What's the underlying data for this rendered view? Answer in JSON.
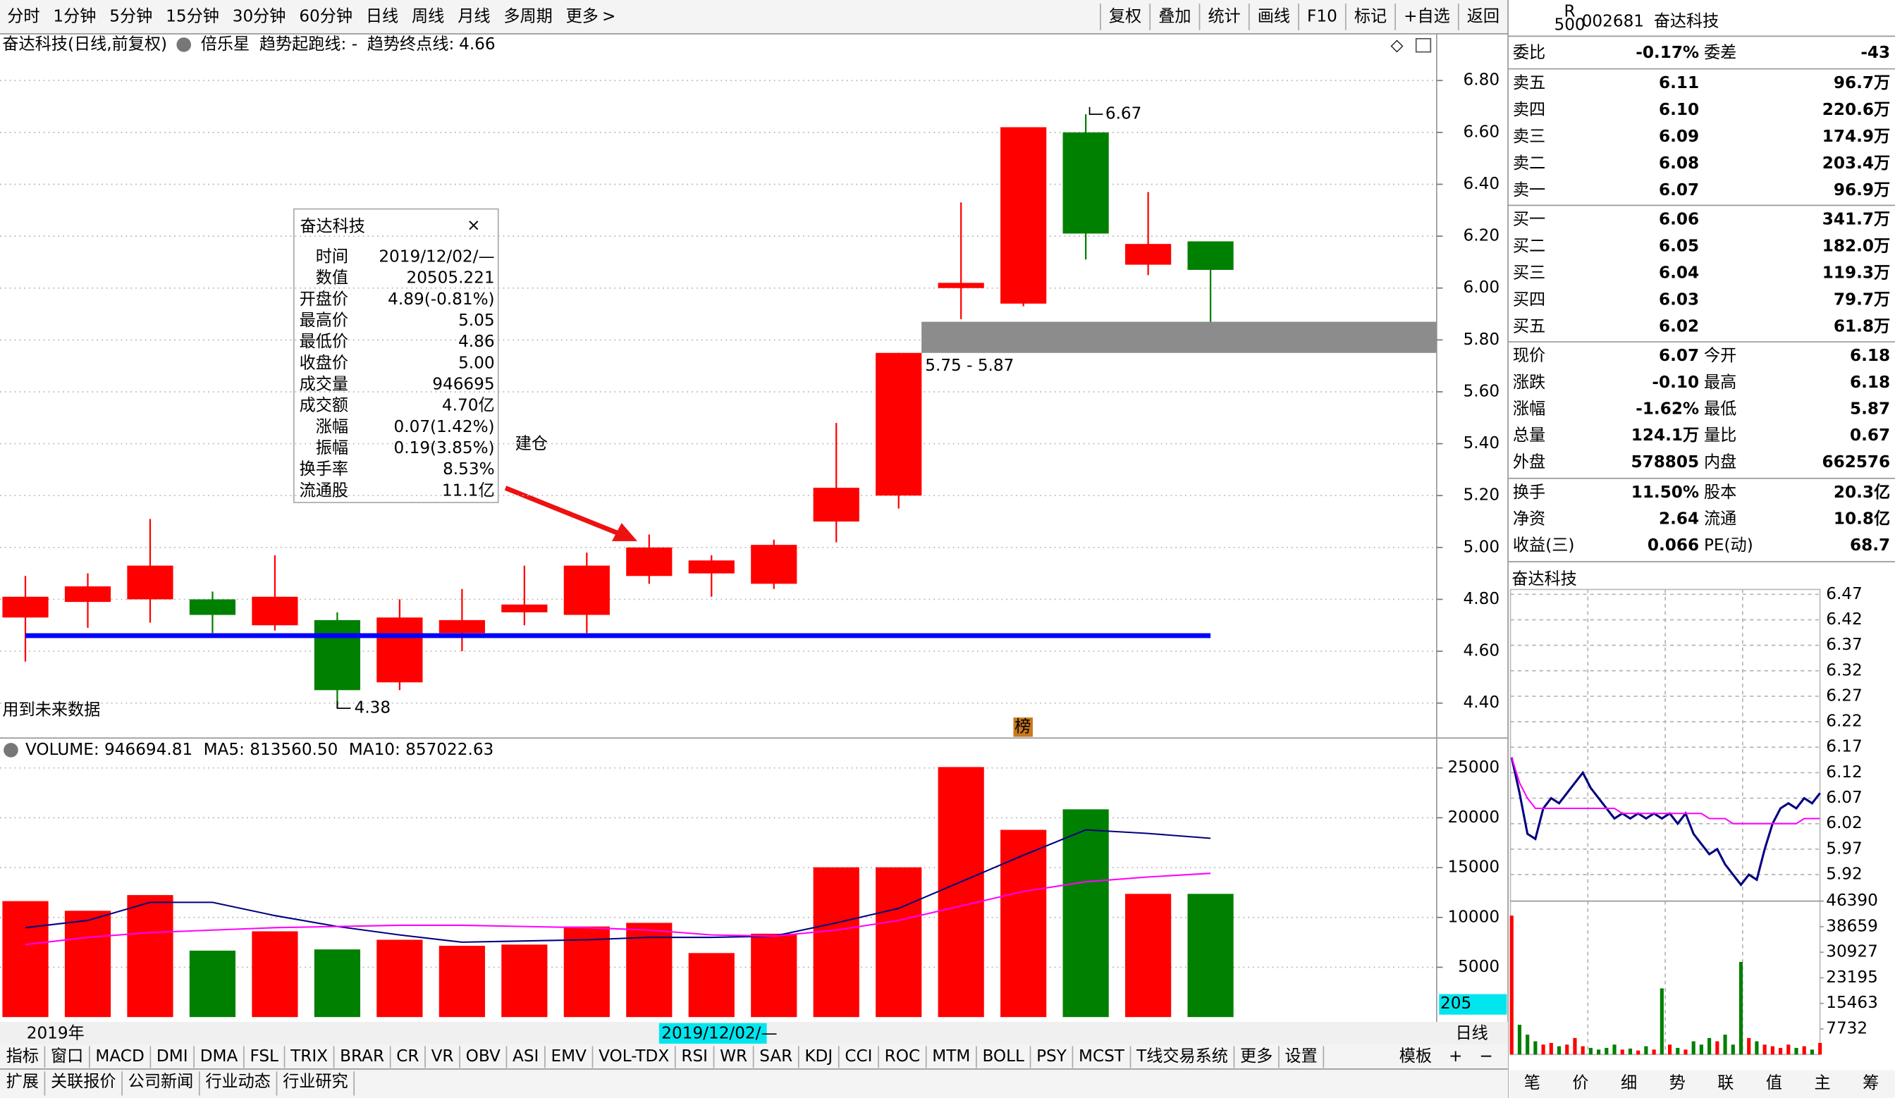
{
  "toolbar": {
    "periods": [
      "分时",
      "1分钟",
      "5分钟",
      "15分钟",
      "30分钟",
      "60分钟",
      "日线",
      "周线",
      "月线",
      "多周期",
      "更多"
    ],
    "buttons": [
      "复权",
      "叠加",
      "统计",
      "画线",
      "F10",
      "标记",
      "+自选",
      "返回"
    ]
  },
  "chart_data": [
    {
      "type": "candlestick",
      "title": "奋达科技(日线,前复权)",
      "indicator": "倍乐星",
      "trend_start_label": "趋势起跑线: -",
      "trend_end_label": "趋势终点线:",
      "trend_end": 4.66,
      "open": [
        4.73,
        4.79,
        4.8,
        4.8,
        4.7,
        4.72,
        4.48,
        4.67,
        4.75,
        4.74,
        4.89,
        4.9,
        4.86,
        5.1,
        5.2,
        6.0,
        5.94,
        6.6,
        6.09,
        6.18
      ],
      "high": [
        4.89,
        4.9,
        5.11,
        4.83,
        4.97,
        4.75,
        4.8,
        4.84,
        4.93,
        4.98,
        5.05,
        4.97,
        5.03,
        5.48,
        5.75,
        6.33,
        6.62,
        6.67,
        6.37,
        6.18
      ],
      "low": [
        4.56,
        4.69,
        4.71,
        4.67,
        4.68,
        4.38,
        4.45,
        4.6,
        4.7,
        4.67,
        4.86,
        4.81,
        4.84,
        5.02,
        5.15,
        5.88,
        5.93,
        6.11,
        6.05,
        5.87
      ],
      "close": [
        4.81,
        4.85,
        4.93,
        4.74,
        4.81,
        4.45,
        4.73,
        4.72,
        4.78,
        4.93,
        5.0,
        4.95,
        5.01,
        5.23,
        5.75,
        6.02,
        6.62,
        6.21,
        6.17,
        6.07
      ],
      "up_color": "#ff0000",
      "down_color": "#008000",
      "trend_color": "#0000ff",
      "ylim": [
        4.27,
        6.98
      ],
      "yticks": [
        {
          "value": 4.4,
          "label": "4.40"
        },
        {
          "value": 4.6,
          "label": "4.60"
        },
        {
          "value": 4.8,
          "label": "4.80"
        },
        {
          "value": 5.0,
          "label": "5.00"
        },
        {
          "value": 5.2,
          "label": "5.20"
        },
        {
          "value": 5.4,
          "label": "5.40"
        },
        {
          "value": 5.6,
          "label": "5.60"
        },
        {
          "value": 5.8,
          "label": "5.80"
        },
        {
          "value": 6.0,
          "label": "6.00"
        },
        {
          "value": 6.2,
          "label": "6.20"
        },
        {
          "value": 6.4,
          "label": "6.40"
        },
        {
          "value": 6.6,
          "label": "6.60"
        },
        {
          "value": 6.8,
          "label": "6.80"
        }
      ],
      "grid": true,
      "zone": {
        "low": 5.75,
        "high": 5.87,
        "label": "5.75 - 5.87"
      },
      "high_marker": 6.67,
      "low_marker": 4.38,
      "annotation": "建仓",
      "note": "用到未来数据",
      "badge": "榜",
      "x_label": "2019年",
      "cursor_date": "2019/12/02/—"
    },
    {
      "type": "bar",
      "legend": [
        "VOLUME: 946694.81",
        "MA5: 813560.50",
        "MA10: 857022.63"
      ],
      "values": [
        11636,
        10667,
        12242,
        6667,
        8606,
        6788,
        7758,
        7152,
        7273,
        9091,
        9455,
        6424,
        8364,
        15030,
        15030,
        25091,
        18788,
        20848,
        12364,
        12364
      ],
      "series": [
        {
          "color": "#000080",
          "values": [
            8970,
            9697,
            11515,
            11515,
            10182,
            9091,
            8242,
            7515,
            7636,
            7758,
            8000,
            8000,
            8121,
            9455,
            10909,
            13576,
            16242,
            18788,
            18424,
            17939
          ]
        },
        {
          "color": "#ff00ff",
          "values": [
            7273,
            8000,
            8485,
            8727,
            8970,
            9091,
            9212,
            9212,
            9091,
            8970,
            8727,
            8242,
            8121,
            8727,
            9697,
            11152,
            12606,
            13576,
            14061,
            14424
          ]
        }
      ],
      "ylim": [
        0,
        27880
      ],
      "yticks": [
        5000,
        10000,
        15000,
        20000,
        25000
      ],
      "grid": true,
      "period_label": "日线",
      "cursor_value": "205"
    },
    {
      "type": "line",
      "title": "奋达科技",
      "series": [
        {
          "color": "#000080",
          "values": [
            6.15,
            6.08,
            6.0,
            5.99,
            6.05,
            6.07,
            6.06,
            6.08,
            6.1,
            6.12,
            6.09,
            6.07,
            6.05,
            6.03,
            6.04,
            6.03,
            6.04,
            6.03,
            6.04,
            6.03,
            6.04,
            6.02,
            6.04,
            6.0,
            5.98,
            5.96,
            5.97,
            5.94,
            5.92,
            5.9,
            5.92,
            5.91,
            5.97,
            6.02,
            6.05,
            6.06,
            6.05,
            6.07,
            6.06,
            6.08
          ]
        },
        {
          "color": "#ff00ff",
          "values": [
            6.15,
            6.1,
            6.07,
            6.05,
            6.05,
            6.05,
            6.05,
            6.05,
            6.05,
            6.05,
            6.05,
            6.05,
            6.05,
            6.05,
            6.04,
            6.04,
            6.04,
            6.04,
            6.04,
            6.04,
            6.04,
            6.04,
            6.04,
            6.04,
            6.04,
            6.03,
            6.03,
            6.03,
            6.02,
            6.02,
            6.02,
            6.02,
            6.02,
            6.02,
            6.02,
            6.02,
            6.02,
            6.03,
            6.03,
            6.03
          ]
        }
      ],
      "ylim": [
        5.868,
        6.489
      ],
      "yticks": [
        6.47,
        6.42,
        6.37,
        6.32,
        6.27,
        6.22,
        6.17,
        6.12,
        6.07,
        6.02,
        5.97,
        5.92
      ],
      "grid": true
    },
    {
      "type": "bar",
      "values": [
        42000,
        9000,
        6000,
        4000,
        3000,
        3500,
        2500,
        3000,
        5000,
        2500,
        2000,
        1500,
        2000,
        3000,
        1500,
        1800,
        1200,
        2500,
        1500,
        20000,
        3000,
        2000,
        1500,
        4000,
        3000,
        5000,
        4000,
        6000,
        3000,
        28000,
        5000,
        4000,
        3000,
        2500,
        2000,
        3000,
        2000,
        2500,
        1500,
        3500
      ],
      "ylim": [
        0,
        46390
      ],
      "yticks": [
        46390,
        38659,
        30927,
        23195,
        15463,
        7732
      ],
      "up_color": "#ff0000",
      "down_color": "#008000"
    }
  ],
  "tooltip": {
    "title": "奋达科技",
    "rows": [
      [
        "时间",
        "2019/12/02/—"
      ],
      [
        "数值",
        "20505.221"
      ],
      [
        "开盘价",
        "4.89(-0.81%)"
      ],
      [
        "最高价",
        "5.05"
      ],
      [
        "最低价",
        "4.86"
      ],
      [
        "收盘价",
        "5.00"
      ],
      [
        "成交量",
        "946695"
      ],
      [
        "成交额",
        "4.70亿"
      ],
      [
        "涨幅",
        "0.07(1.42%)"
      ],
      [
        "振幅",
        "0.19(3.85%)"
      ],
      [
        "换手率",
        "8.53%"
      ],
      [
        "流通股",
        "11.1亿"
      ]
    ]
  },
  "quote": {
    "badge_top": "R",
    "badge_bottom": "500",
    "code": "002681",
    "name": "奋达科技",
    "asks": [
      [
        "卖五",
        "6.11",
        "96.7万"
      ],
      [
        "卖四",
        "6.10",
        "220.6万"
      ],
      [
        "卖三",
        "6.09",
        "174.9万"
      ],
      [
        "卖二",
        "6.08",
        "203.4万"
      ],
      [
        "卖一",
        "6.07",
        "96.9万"
      ]
    ],
    "bids": [
      [
        "买一",
        "6.06",
        "341.7万"
      ],
      [
        "买二",
        "6.05",
        "182.0万"
      ],
      [
        "买三",
        "6.04",
        "119.3万"
      ],
      [
        "买四",
        "6.03",
        "79.7万"
      ],
      [
        "买五",
        "6.02",
        "61.8万"
      ]
    ],
    "stats": [
      [
        "委比",
        "-0.17%",
        "委差",
        "-43"
      ],
      [
        "现价",
        "6.07",
        "今开",
        "6.18"
      ],
      [
        "涨跌",
        "-0.10",
        "最高",
        "6.18"
      ],
      [
        "涨幅",
        "-1.62%",
        "最低",
        "5.87"
      ],
      [
        "总量",
        "124.1万",
        "量比",
        "0.67"
      ],
      [
        "外盘",
        "578805",
        "内盘",
        "662576"
      ],
      [
        "换手",
        "11.50%",
        "股本",
        "20.3亿"
      ],
      [
        "净资",
        "2.64",
        "流通",
        "10.8亿"
      ],
      [
        "收益(三)",
        "0.066",
        "PE(动)",
        "68.7"
      ]
    ]
  },
  "tabs": {
    "indicators": [
      "指标",
      "窗口",
      "MACD",
      "DMI",
      "DMA",
      "FSL",
      "TRIX",
      "BRAR",
      "CR",
      "VR",
      "OBV",
      "ASI",
      "EMV",
      "VOL-TDX",
      "RSI",
      "WR",
      "SAR",
      "KDJ",
      "CCI",
      "ROC",
      "MTM",
      "BOLL",
      "PSY",
      "MCST",
      "T线交易系统",
      "更多",
      "设置"
    ],
    "template": [
      "模板",
      "+",
      "−"
    ],
    "bottom": [
      "扩展",
      "关联报价",
      "公司新闻",
      "行业动态",
      "行业研究"
    ],
    "side": [
      "笔",
      "价",
      "细",
      "势",
      "联",
      "值",
      "主",
      "筹"
    ]
  }
}
